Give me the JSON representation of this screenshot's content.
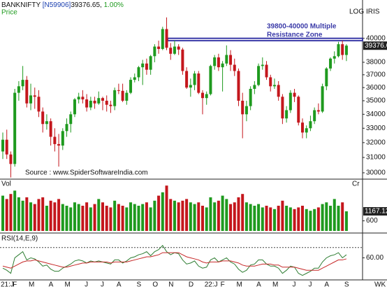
{
  "chart_data": [
    {
      "type": "candlestick",
      "symbol": "BANKNIFTY",
      "code": "[N59906]",
      "quote": "39376.65,",
      "change": "1.00%",
      "subtitle": "Price",
      "scale_label": "LOG",
      "indicator_label": "IRIS",
      "source": "Source : www.SpiderSoftwareIndia.com",
      "annotation": [
        "39800-40000 Multiple",
        "Resistance Zone"
      ],
      "zone": [
        39800,
        40000
      ],
      "last_label": 39376.6,
      "x_unit": "WK",
      "log": true,
      "up_color": "#1e9a1e",
      "down_color": "#c4161c",
      "zone_color": "#3b3ba8",
      "categories": [
        "21:J",
        null,
        null,
        "F",
        null,
        null,
        null,
        "M",
        null,
        null,
        null,
        null,
        "A",
        null,
        null,
        null,
        "M",
        null,
        null,
        null,
        null,
        "J",
        null,
        null,
        null,
        "J",
        null,
        null,
        null,
        "A",
        null,
        null,
        null,
        null,
        "S",
        null,
        null,
        null,
        "O",
        null,
        null,
        null,
        "N",
        null,
        null,
        null,
        null,
        "D",
        null,
        null,
        null,
        "22:J",
        null,
        null,
        null,
        "F",
        null,
        null,
        null,
        "M",
        null,
        null,
        null,
        null,
        "A",
        null,
        null,
        null,
        "M",
        null,
        null,
        null,
        null,
        "J",
        null,
        null,
        null,
        "J",
        null,
        null,
        null,
        "A",
        null,
        null,
        null,
        null,
        "S"
      ],
      "open": [
        31400,
        32200,
        31200,
        30570,
        35600,
        36100,
        36600,
        34800,
        35400,
        35300,
        34200,
        33300,
        33500,
        32400,
        31900,
        31800,
        32800,
        33300,
        34000,
        35100,
        35300,
        35100,
        34500,
        35000,
        34800,
        35200,
        35000,
        34700,
        34600,
        35800,
        35750,
        35000,
        35600,
        36600,
        36800,
        37600,
        37900,
        37400,
        38500,
        39300,
        39100,
        40800,
        39200,
        38700,
        39300,
        39050,
        37300,
        36000,
        36200,
        37100,
        35600,
        35200,
        35500,
        37700,
        38400,
        37600,
        37900,
        38600,
        37800,
        37300,
        35000,
        34000,
        34600,
        35900,
        36200,
        37700,
        37800,
        36800,
        36100,
        36200,
        35300,
        33700,
        34300,
        35600,
        35300,
        33400,
        32700,
        33000,
        33500,
        34300,
        34200,
        36100,
        37500,
        38300,
        38500,
        39500,
        38600
      ],
      "high": [
        32700,
        32900,
        31400,
        35900,
        36500,
        37700,
        36900,
        36300,
        36000,
        35800,
        34500,
        34000,
        33700,
        33000,
        32600,
        33000,
        33700,
        34200,
        35200,
        35600,
        35800,
        35500,
        35300,
        35300,
        35700,
        35300,
        35400,
        35000,
        36000,
        36300,
        36300,
        35800,
        36800,
        37100,
        37700,
        38200,
        38300,
        38600,
        39500,
        39800,
        41000,
        41829,
        39600,
        39800,
        39500,
        39200,
        37600,
        36700,
        37300,
        37300,
        35800,
        35700,
        37800,
        38600,
        38700,
        38100,
        39400,
        39000,
        38300,
        37500,
        35600,
        35000,
        36100,
        36500,
        37900,
        38400,
        38100,
        37000,
        36700,
        36500,
        35500,
        34600,
        35800,
        35900,
        35400,
        33700,
        33200,
        33900,
        34500,
        34800,
        36300,
        37600,
        38400,
        38900,
        39700,
        39800,
        39500
      ],
      "low": [
        30900,
        30900,
        29700,
        30400,
        35000,
        35800,
        34500,
        34300,
        34400,
        33800,
        32700,
        32900,
        31800,
        31400,
        30400,
        31500,
        32400,
        32700,
        33800,
        34800,
        34800,
        34200,
        34300,
        34400,
        34700,
        34300,
        34200,
        34100,
        34300,
        35500,
        34900,
        34700,
        35500,
        36400,
        36500,
        36200,
        37000,
        37000,
        38000,
        38700,
        39000,
        39000,
        38200,
        38600,
        38600,
        37000,
        35900,
        35300,
        35800,
        35500,
        34000,
        34700,
        35400,
        37400,
        37300,
        35700,
        37700,
        37300,
        36900,
        34600,
        32300,
        33500,
        34300,
        35500,
        36100,
        37400,
        36600,
        35700,
        35900,
        35000,
        33300,
        33400,
        34100,
        34900,
        33200,
        32300,
        32300,
        32800,
        33300,
        34000,
        34100,
        35800,
        37300,
        37900,
        38400,
        38200,
        38100
      ],
      "close": [
        32200,
        31200,
        30570,
        35600,
        36100,
        36600,
        34800,
        35400,
        35300,
        34200,
        33300,
        33500,
        32400,
        31900,
        31800,
        32800,
        33300,
        34000,
        35100,
        35300,
        35100,
        34500,
        35000,
        34800,
        35200,
        35000,
        34700,
        34600,
        35800,
        35750,
        35000,
        35600,
        36600,
        36800,
        37600,
        37900,
        37400,
        38500,
        39300,
        39100,
        40800,
        39200,
        38700,
        39300,
        39050,
        37300,
        36000,
        36200,
        37100,
        35600,
        35200,
        35500,
        37700,
        38400,
        37600,
        37900,
        38600,
        37800,
        37300,
        35000,
        34000,
        34600,
        35900,
        36200,
        37700,
        37800,
        36800,
        36100,
        36200,
        35300,
        33700,
        34300,
        35600,
        35300,
        33400,
        32700,
        33000,
        33500,
        34300,
        34200,
        36100,
        37500,
        38300,
        38500,
        39500,
        38600,
        39376.65
      ],
      "ylim": [
        29640,
        42900
      ],
      "yticks": [
        30000,
        31000,
        32000,
        33000,
        34000,
        35000,
        36000,
        37000,
        38000,
        40000
      ]
    },
    {
      "type": "bar",
      "label": "Vol",
      "unit": "Cr",
      "last_label": 1167.12,
      "values": [
        2100,
        1900,
        2200,
        2400,
        2000,
        1800,
        2000,
        1700,
        1600,
        1900,
        2000,
        1500,
        1800,
        1700,
        1900,
        1600,
        1500,
        1400,
        1700,
        1600,
        1500,
        1700,
        1400,
        1600,
        1900,
        1700,
        1500,
        1400,
        1800,
        1600,
        1500,
        1400,
        1700,
        1600,
        1500,
        1600,
        1700,
        1400,
        1800,
        2100,
        2300,
        2700,
        1900,
        1800,
        1700,
        1800,
        1900,
        1700,
        1600,
        1700,
        1500,
        1400,
        2000,
        1700,
        1800,
        2100,
        1900,
        1600,
        1700,
        2000,
        2200,
        1700,
        1600,
        1500,
        1600,
        1400,
        1500,
        1400,
        1300,
        1500,
        1800,
        1500,
        1400,
        1300,
        1400,
        1500,
        1300,
        1200,
        1300,
        1400,
        1600,
        1700,
        1500,
        1900,
        1500,
        1700,
        1167.12
      ],
      "ylim": [
        0,
        3000
      ],
      "yticks": [
        600
      ]
    },
    {
      "type": "line",
      "label": "RSI(14,E,9)",
      "reference_level": 70,
      "series": [
        {
          "color": "#2e7d32",
          "values": [
            50,
            48,
            45,
            60,
            63,
            66,
            58,
            60,
            59,
            56,
            52,
            53,
            49,
            47,
            47,
            50,
            52,
            54,
            57,
            58,
            57,
            55,
            57,
            56,
            57,
            56,
            55,
            54,
            58,
            58,
            55,
            57,
            60,
            61,
            63,
            64,
            66,
            62,
            66,
            68,
            72,
            66,
            63,
            65,
            64,
            58,
            54,
            55,
            57,
            52,
            50,
            51,
            58,
            60,
            56,
            58,
            60,
            56,
            54,
            49,
            46,
            48,
            53,
            54,
            58,
            58,
            54,
            52,
            52,
            50,
            45,
            48,
            52,
            51,
            45,
            43,
            45,
            47,
            50,
            50,
            56,
            60,
            62,
            63,
            65,
            60,
            63
          ]
        },
        {
          "color": "#c62828",
          "values": [
            52,
            51,
            50,
            52,
            54,
            56,
            57,
            57,
            58,
            57,
            56,
            55,
            54,
            53,
            52,
            51,
            51,
            52,
            53,
            54,
            55,
            55,
            56,
            56,
            56,
            56,
            56,
            55,
            56,
            56,
            56,
            56,
            57,
            58,
            59,
            60,
            61,
            61,
            62,
            63,
            65,
            65,
            65,
            65,
            65,
            63,
            61,
            60,
            59,
            58,
            56,
            55,
            56,
            56,
            56,
            57,
            57,
            57,
            56,
            55,
            53,
            52,
            52,
            52,
            53,
            54,
            54,
            54,
            53,
            53,
            51,
            51,
            51,
            51,
            50,
            49,
            48,
            48,
            48,
            48,
            50,
            52,
            54,
            56,
            58,
            58,
            59
          ]
        }
      ],
      "ylim": [
        40,
        82
      ],
      "yticks": [
        {
          "value": 60,
          "label": "60.00"
        }
      ]
    }
  ]
}
